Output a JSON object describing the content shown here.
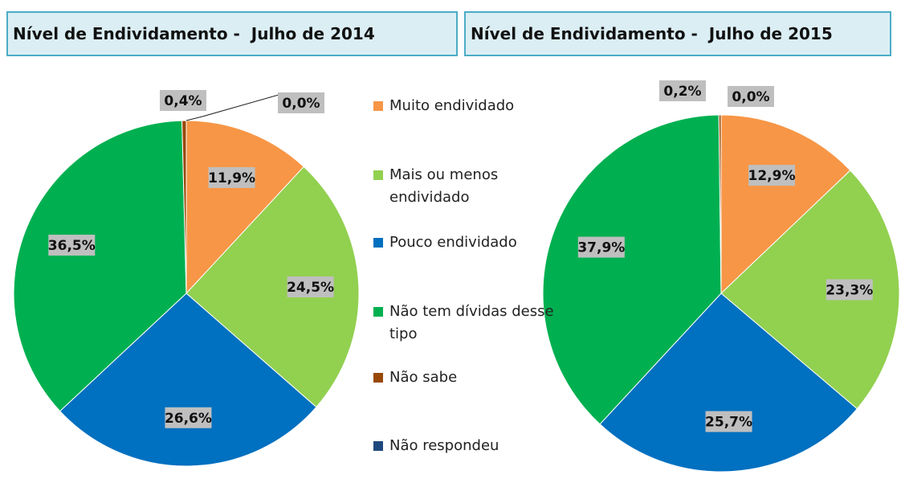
{
  "chart_data": [
    {
      "type": "pie",
      "title": "Nível de Endividamento -  Julho de 2014",
      "categories": [
        "Muito endividado",
        "Mais ou menos endividado",
        "Pouco endividado",
        "Não tem dívidas desse tipo",
        "Não sabe",
        "Não respondeu"
      ],
      "values": [
        11.9,
        24.5,
        26.6,
        36.5,
        0.4,
        0.0
      ],
      "value_labels": [
        "11,9%",
        "24,5%",
        "26,6%",
        "36,5%",
        "0,4%",
        "0,0%"
      ],
      "colors": [
        "#f79646",
        "#92d050",
        "#0070c0",
        "#00b050",
        "#984807",
        "#1f497d"
      ]
    },
    {
      "type": "pie",
      "title": "Nível de Endividamento -  Julho de 2015",
      "categories": [
        "Muito endividado",
        "Mais ou menos endividado",
        "Pouco endividado",
        "Não tem dívidas desse tipo",
        "Não sabe",
        "Não respondeu"
      ],
      "values": [
        12.9,
        23.3,
        25.7,
        37.9,
        0.2,
        0.0
      ],
      "value_labels": [
        "12,9%",
        "23,3%",
        "25,7%",
        "37,9%",
        "0,2%",
        "0,0%"
      ],
      "colors": [
        "#f79646",
        "#92d050",
        "#0070c0",
        "#00b050",
        "#984807",
        "#1f497d"
      ]
    }
  ]
}
